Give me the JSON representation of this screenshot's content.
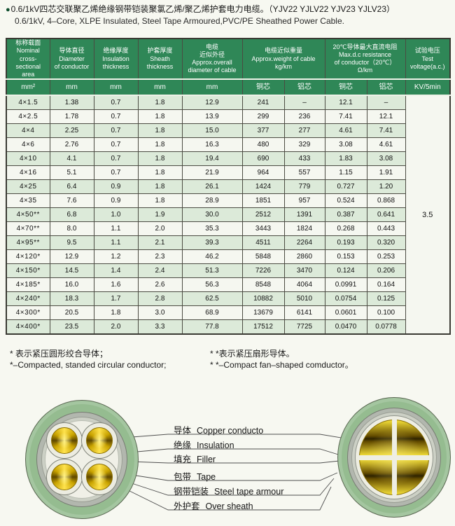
{
  "title": {
    "bullet": "●",
    "cn": "0.6/1kV四芯交联聚乙烯绝缘钢带铠装聚氯乙烯/聚乙烯护套电力电缆。（YJV22 YJLV22 YJV23 YJLV23）",
    "en": "0.6/1kV, 4–Core, XLPE Insulated, Steel Tape Armoured,PVC/PE Sheathed Power Cable."
  },
  "table": {
    "headers": {
      "area": "标称载面\nNominal\ncross-sectional\narea",
      "diameter": "导体直径\nDiameter\nof conductor",
      "insulation": "绝缘厚度\nInsulation\nthickness",
      "sheath": "护套厚度\nSheath\nthickness",
      "overall": "电缆\n近似外径\nApprox.overall\ndiameter of cable",
      "weight": "电缆近似重量\nApprox.weight of cable\nkg/km",
      "resistance": "20℃导体最大直流电阻\nMax.d.c resistance\nof conductor（20℃）\nΩ/km",
      "voltage": "试验电压\nTest\nvoltage(a.c.)"
    },
    "units": [
      "mm²",
      "mm",
      "mm",
      "mm",
      "mm",
      "铜芯",
      "铝芯",
      "铜芯",
      "铝芯",
      "KV/5min"
    ],
    "rows": [
      [
        "4×1.5",
        "1.38",
        "0.7",
        "1.8",
        "12.9",
        "241",
        "–",
        "12.1",
        "–"
      ],
      [
        "4×2.5",
        "1.78",
        "0.7",
        "1.8",
        "13.9",
        "299",
        "236",
        "7.41",
        "12.1"
      ],
      [
        "4×4",
        "2.25",
        "0.7",
        "1.8",
        "15.0",
        "377",
        "277",
        "4.61",
        "7.41"
      ],
      [
        "4×6",
        "2.76",
        "0.7",
        "1.8",
        "16.3",
        "480",
        "329",
        "3.08",
        "4.61"
      ],
      [
        "4×10",
        "4.1",
        "0.7",
        "1.8",
        "19.4",
        "690",
        "433",
        "1.83",
        "3.08"
      ],
      [
        "4×16",
        "5.1",
        "0.7",
        "1.8",
        "21.9",
        "964",
        "557",
        "1.15",
        "1.91"
      ],
      [
        "4×25",
        "6.4",
        "0.9",
        "1.8",
        "26.1",
        "1424",
        "779",
        "0.727",
        "1.20"
      ],
      [
        "4×35",
        "7.6",
        "0.9",
        "1.8",
        "28.9",
        "1851",
        "957",
        "0.524",
        "0.868"
      ],
      [
        "4×50**",
        "6.8",
        "1.0",
        "1.9",
        "30.0",
        "2512",
        "1391",
        "0.387",
        "0.641"
      ],
      [
        "4×70**",
        "8.0",
        "1.1",
        "2.0",
        "35.3",
        "3443",
        "1824",
        "0.268",
        "0.443"
      ],
      [
        "4×95**",
        "9.5",
        "1.1",
        "2.1",
        "39.3",
        "4511",
        "2264",
        "0.193",
        "0.320"
      ],
      [
        "4×120*",
        "12.9",
        "1.2",
        "2.3",
        "46.2",
        "5848",
        "2860",
        "0.153",
        "0.253"
      ],
      [
        "4×150*",
        "14.5",
        "1.4",
        "2.4",
        "51.3",
        "7226",
        "3470",
        "0.124",
        "0.206"
      ],
      [
        "4×185*",
        "16.0",
        "1.6",
        "2.6",
        "56.3",
        "8548",
        "4064",
        "0.0991",
        "0.164"
      ],
      [
        "4×240*",
        "18.3",
        "1.7",
        "2.8",
        "62.5",
        "10882",
        "5010",
        "0.0754",
        "0.125"
      ],
      [
        "4×300*",
        "20.5",
        "1.8",
        "3.0",
        "68.9",
        "13679",
        "6141",
        "0.0601",
        "0.100"
      ],
      [
        "4×400*",
        "23.5",
        "2.0",
        "3.3",
        "77.8",
        "17512",
        "7725",
        "0.0470",
        "0.0778"
      ]
    ],
    "test_voltage": "3.5"
  },
  "footnotes": {
    "circular_cn": "* 表示紧压圆形绞合导体；",
    "circular_en": "*–Compacted, standed circular conductor;",
    "fan_cn": "* *表示紧压扇形导体。",
    "fan_en": "* *–Compact fan–shaped comductor。"
  },
  "diagram": {
    "labels": [
      {
        "cn": "导体",
        "en": "Copper conducto"
      },
      {
        "cn": "绝缘",
        "en": "Insulation"
      },
      {
        "cn": "填充",
        "en": "Filler"
      },
      {
        "cn": "包带",
        "en": "Tape"
      },
      {
        "cn": "钢带铠装",
        "en": "Steel tape armour"
      },
      {
        "cn": "外护套",
        "en": "Over sheath"
      }
    ]
  },
  "colors": {
    "header_green": "#2f8757",
    "row_tint_green": "#dcead9",
    "sheath_green": "#95bc90",
    "conductor_gold": "#f2cf00",
    "steel_gray": "#b2b7ae"
  }
}
